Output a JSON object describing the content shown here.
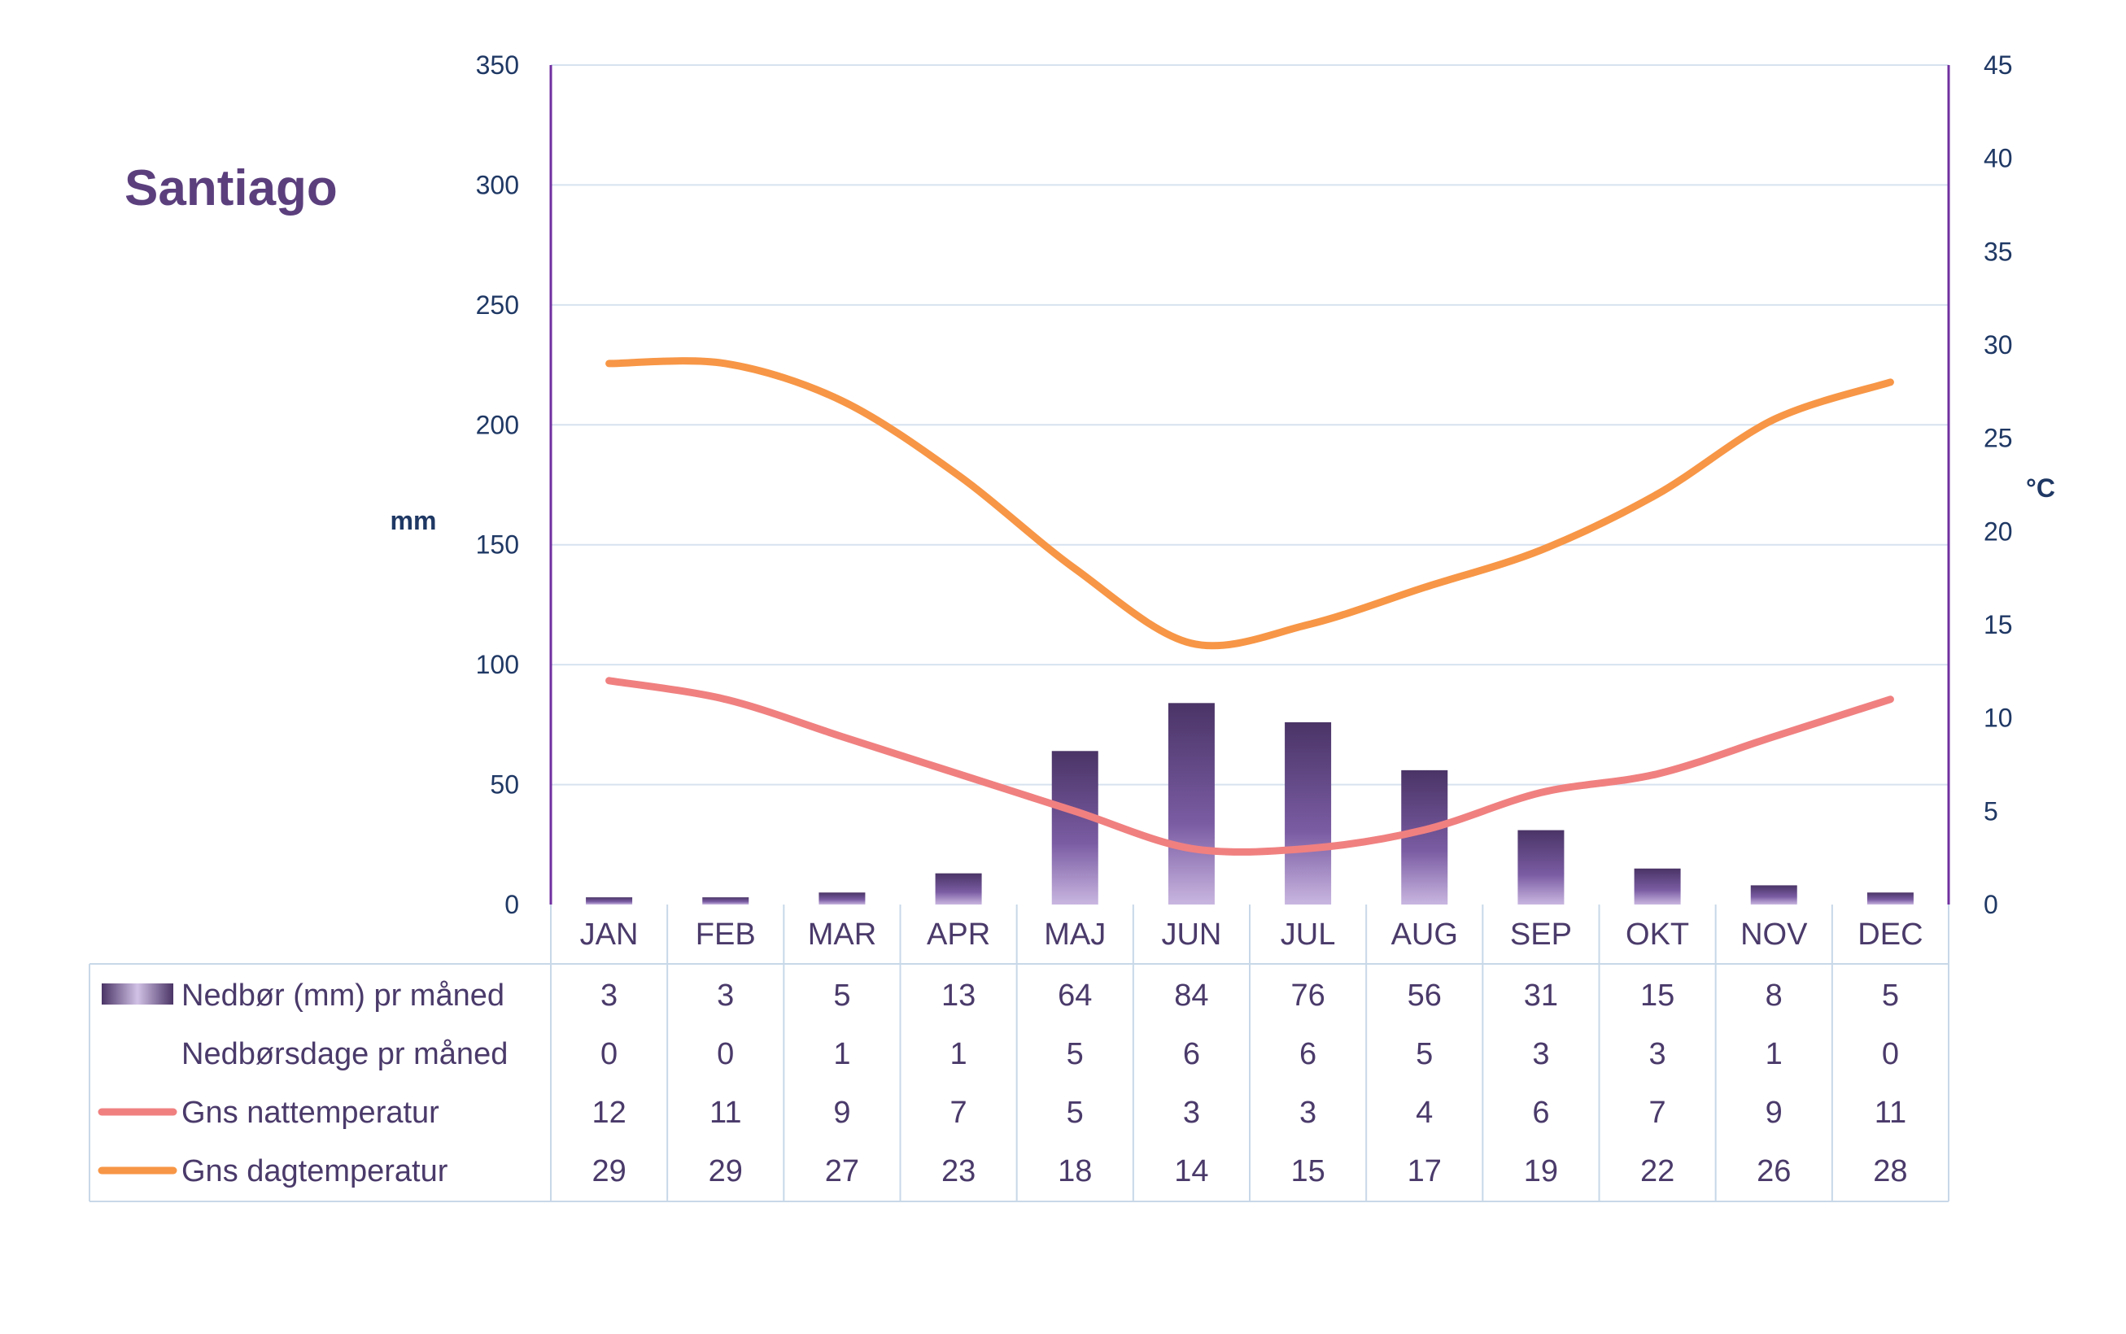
{
  "chart_data": {
    "type": "bar",
    "title": "Santiago",
    "categories": [
      "JAN",
      "FEB",
      "MAR",
      "APR",
      "MAJ",
      "JUN",
      "JUL",
      "AUG",
      "SEP",
      "OKT",
      "NOV",
      "DEC"
    ],
    "left_axis": {
      "label": "mm",
      "range": [
        0,
        350
      ],
      "ticks": [
        0,
        50,
        100,
        150,
        200,
        250,
        300,
        350
      ]
    },
    "right_axis": {
      "label": "°C",
      "range": [
        0,
        45
      ],
      "ticks": [
        0,
        5,
        10,
        15,
        20,
        25,
        30,
        35,
        40,
        45
      ]
    },
    "grid": true,
    "legend": "data-table",
    "series": [
      {
        "name": "Nedbør (mm) pr måned",
        "type": "bar",
        "axis": "left",
        "color": "#5b3f7d",
        "values": [
          3,
          3,
          5,
          13,
          64,
          84,
          76,
          56,
          31,
          15,
          8,
          5
        ]
      },
      {
        "name": "Nedbørsdage pr måned",
        "type": "none",
        "values": [
          0,
          0,
          1,
          1,
          5,
          6,
          6,
          5,
          3,
          3,
          1,
          0
        ]
      },
      {
        "name": "Gns nattemperatur",
        "type": "line",
        "axis": "right",
        "color": "#f08080",
        "values": [
          12,
          11,
          9,
          7,
          5,
          3,
          3,
          4,
          6,
          7,
          9,
          11
        ]
      },
      {
        "name": "Gns dagtemperatur",
        "type": "line",
        "axis": "right",
        "color": "#f79646",
        "values": [
          29,
          29,
          27,
          23,
          18,
          14,
          15,
          17,
          19,
          22,
          26,
          28
        ]
      }
    ]
  }
}
